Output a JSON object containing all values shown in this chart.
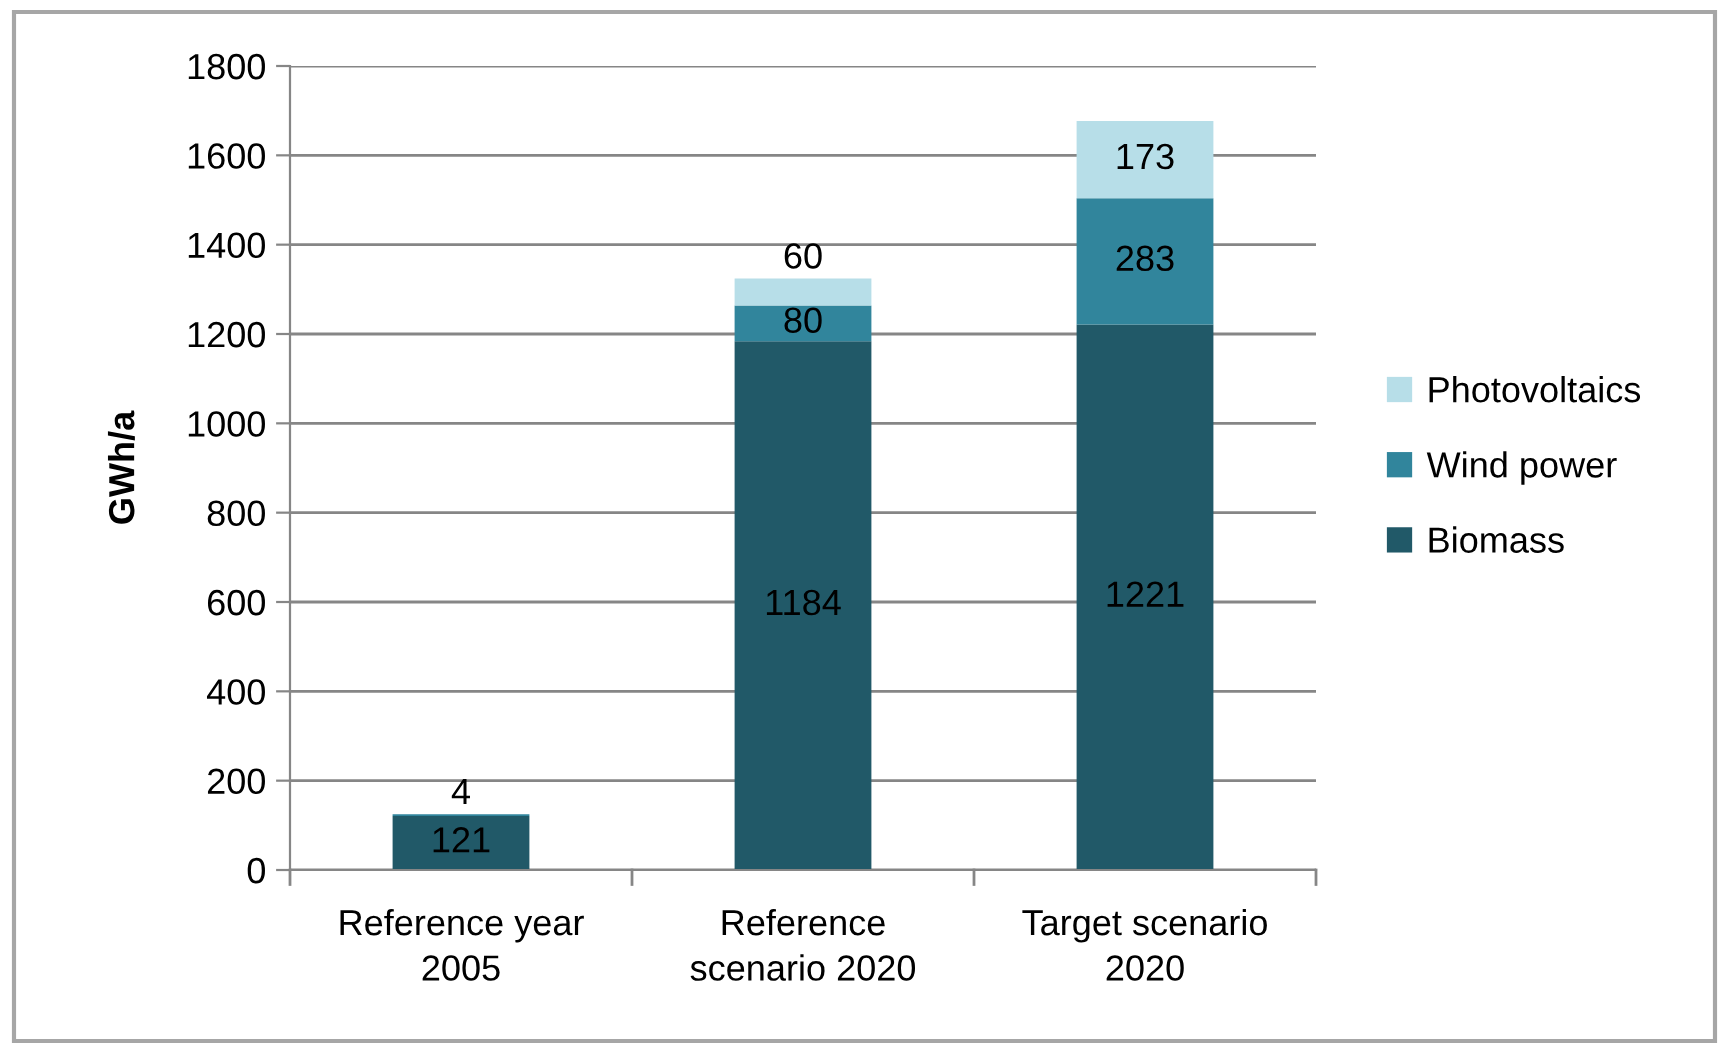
{
  "chart_data": {
    "type": "bar",
    "stacked": true,
    "categories": [
      "Reference year\n2005",
      "Reference\nscenario 2020",
      "Target scenario\n2020"
    ],
    "series": [
      {
        "name": "Biomass",
        "color": "#215968",
        "values": [
          121,
          1184,
          1221
        ]
      },
      {
        "name": "Wind power",
        "color": "#31859c",
        "values": [
          4,
          80,
          283
        ]
      },
      {
        "name": "Photovoltaics",
        "color": "#b7dee8",
        "values": [
          null,
          60,
          173
        ]
      }
    ],
    "ylabel": "GWh/a",
    "ylim": [
      0,
      1800
    ],
    "yticks": [
      0,
      200,
      400,
      600,
      800,
      1000,
      1200,
      1400,
      1600,
      1800
    ],
    "grid": "y",
    "legend": "right",
    "data_labels": true
  }
}
